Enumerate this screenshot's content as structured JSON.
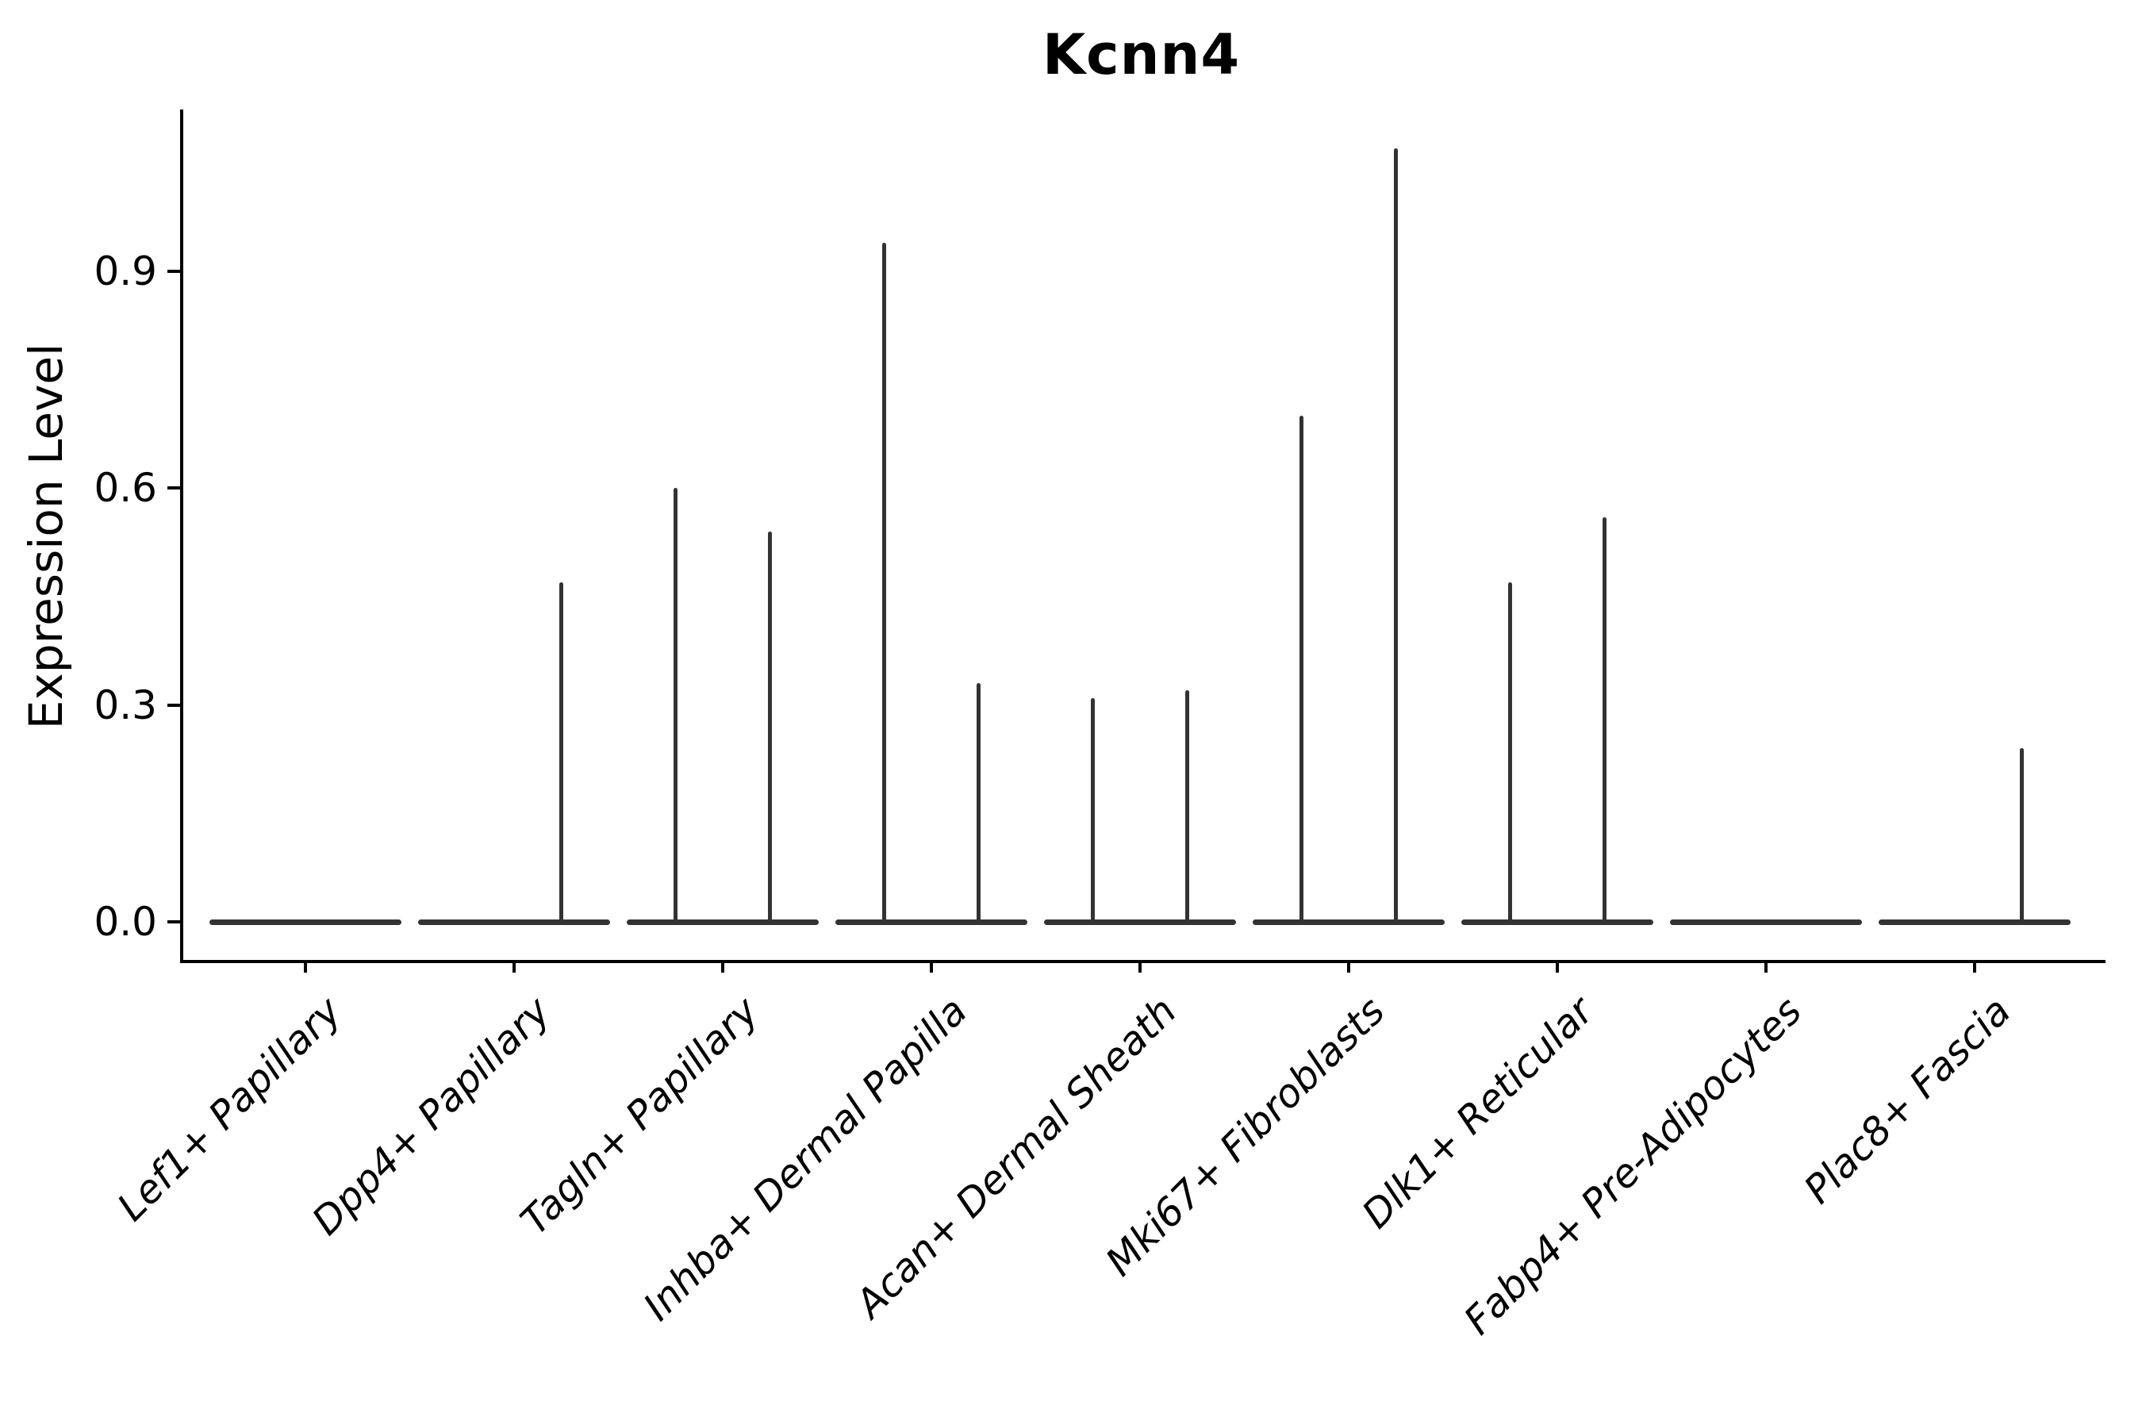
{
  "chart_data": {
    "type": "violin",
    "title": "Kcnn4",
    "ylabel": "Expression Level",
    "xlabel": "",
    "categories": [
      "Lef1+ Papillary",
      "Dpp4+ Papillary",
      "Tagln+ Papillary",
      "Inhba+ Dermal Papilla",
      "Acan+ Dermal Sheath",
      "Mki67+ Fibroblasts",
      "Dlk1+ Reticular",
      "Fabp4+ Pre-Adipocytes",
      "Plac8+ Fascia"
    ],
    "violins_per_category": 2,
    "baseline_value": 0,
    "max_expression": [
      [
        0,
        0
      ],
      [
        0,
        0.47
      ],
      [
        0.6,
        0.54
      ],
      [
        0.94,
        0.33
      ],
      [
        0.31,
        0.32
      ],
      [
        0.7,
        1.07
      ],
      [
        0.47,
        0.56
      ],
      [
        0,
        0
      ],
      [
        0,
        0.24
      ]
    ],
    "yticks": [
      0.0,
      0.3,
      0.6,
      0.9
    ],
    "ytick_labels": [
      "0.0",
      "0.3",
      "0.6",
      "0.9"
    ],
    "ylim": [
      0,
      1.12
    ],
    "grid": false,
    "legend": null,
    "colors": {
      "violin_fill": "#333333",
      "axis": "#000000",
      "text": "#000000"
    }
  }
}
